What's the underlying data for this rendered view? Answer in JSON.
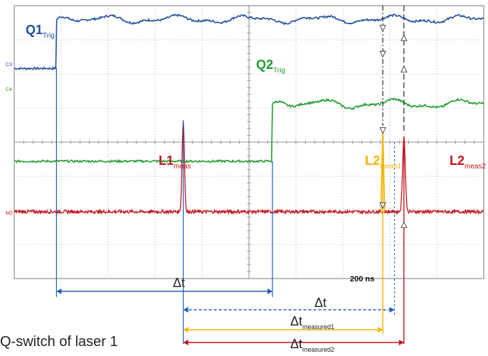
{
  "chart_data": {
    "type": "line",
    "title": "",
    "scale_label": "200 ns",
    "channel_markers": [
      "C3",
      "C4",
      "M2"
    ],
    "series": [
      {
        "name": "Q1",
        "subscript": "Trig",
        "color": "#1f4e9c",
        "low_level": 0.77,
        "high_level": 0.95,
        "step_x": 0.09
      },
      {
        "name": "Q2",
        "subscript": "Trig",
        "color": "#1f9c2f",
        "low_level": 0.43,
        "high_level": 0.64,
        "step_x": 0.55
      },
      {
        "name": "L1",
        "subscript": "meas",
        "color": "#c0141c",
        "peak_x": 0.36,
        "peak_level": 0.58
      },
      {
        "name": "L2",
        "subscript": "meas1",
        "color": "#f5b400",
        "peak_x": 0.785,
        "peak_level": 0.55
      },
      {
        "name": "L2",
        "subscript": "meas2",
        "color": "#c0141c",
        "peak_x": 0.83,
        "peak_level": 0.52
      }
    ],
    "intervals": [
      {
        "symbol": "Δt",
        "subscript": "",
        "color": "#1f5fb5",
        "from": 0.09,
        "to": 0.55,
        "dashed": false
      },
      {
        "symbol": "Δt",
        "subscript": "",
        "color": "#1f5fb5",
        "from": 0.36,
        "to": 0.81,
        "dashed": true
      },
      {
        "symbol": "Δt",
        "subscript": "measured1",
        "color": "#f5b400",
        "from": 0.36,
        "to": 0.785,
        "dashed": false
      },
      {
        "symbol": "Δt",
        "subscript": "measured2",
        "color": "#c0141c",
        "from": 0.36,
        "to": 0.83,
        "dashed": false
      }
    ]
  },
  "caption": "Q-switch of laser 1"
}
